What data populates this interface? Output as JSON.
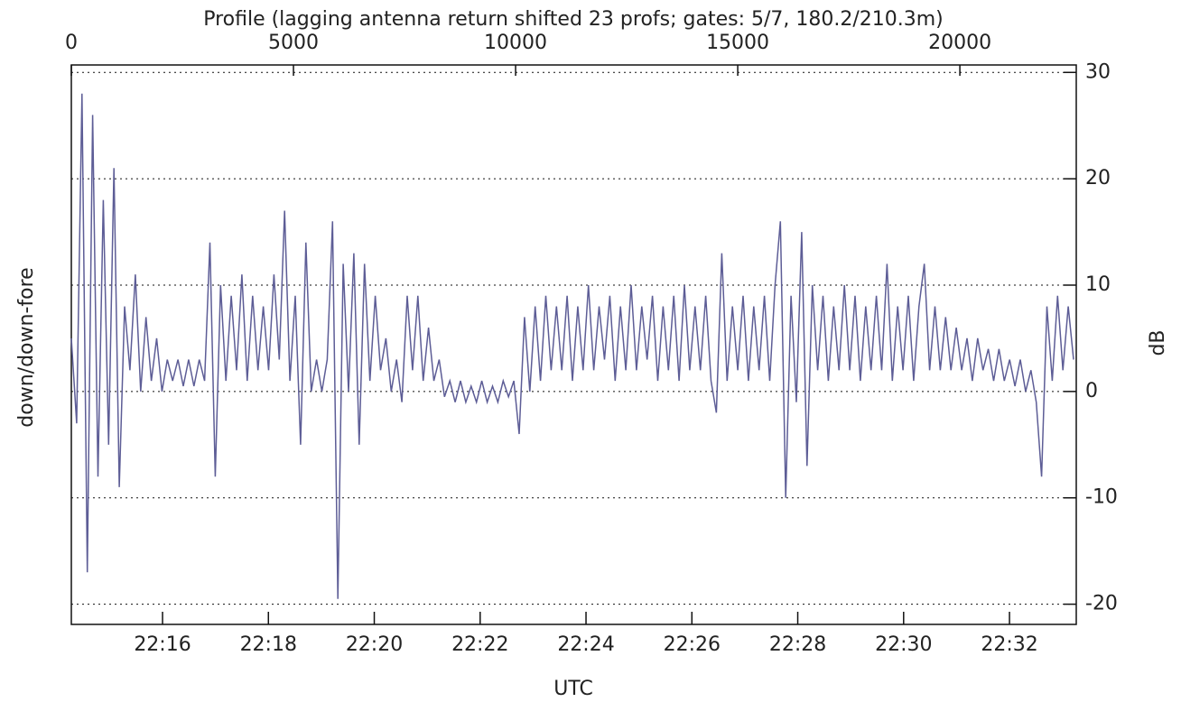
{
  "chart_data": {
    "type": "line",
    "title": "Profile (lagging antenna return shifted 23 profs; gates: 5/7, 180.2/210.3m)",
    "x_label": "UTC",
    "y_label": "down/down-fore",
    "y2_label": "dB",
    "xlim": [
      0,
      22620
    ],
    "xticks": [
      0,
      5000,
      10000,
      15000,
      20000
    ],
    "x2ticks": [
      {
        "value": 2053,
        "label": "22:16"
      },
      {
        "value": 4436,
        "label": "22:18"
      },
      {
        "value": 6819,
        "label": "22:20"
      },
      {
        "value": 9202,
        "label": "22:22"
      },
      {
        "value": 11585,
        "label": "22:24"
      },
      {
        "value": 13968,
        "label": "22:26"
      },
      {
        "value": 16351,
        "label": "22:28"
      },
      {
        "value": 18734,
        "label": "22:30"
      },
      {
        "value": 21117,
        "label": "22:32"
      }
    ],
    "ylim": [
      -21.9,
      30.7
    ],
    "yticks": [
      -20,
      -10,
      0,
      10,
      20,
      30
    ],
    "grid": true,
    "x": [
      0,
      120,
      240,
      360,
      480,
      600,
      720,
      840,
      960,
      1080,
      1200,
      1320,
      1440,
      1560,
      1680,
      1800,
      1920,
      2040,
      2160,
      2280,
      2400,
      2520,
      2640,
      2760,
      2880,
      3000,
      3120,
      3240,
      3360,
      3480,
      3600,
      3720,
      3840,
      3960,
      4080,
      4200,
      4320,
      4440,
      4560,
      4680,
      4800,
      4920,
      5040,
      5160,
      5280,
      5400,
      5520,
      5640,
      5760,
      5880,
      6000,
      6120,
      6240,
      6360,
      6480,
      6600,
      6720,
      6840,
      6960,
      7080,
      7200,
      7320,
      7440,
      7560,
      7680,
      7800,
      7920,
      8040,
      8160,
      8280,
      8400,
      8520,
      8640,
      8760,
      8880,
      9000,
      9120,
      9240,
      9360,
      9480,
      9600,
      9720,
      9840,
      9960,
      10080,
      10200,
      10320,
      10440,
      10560,
      10680,
      10800,
      10920,
      11040,
      11160,
      11280,
      11400,
      11520,
      11640,
      11760,
      11880,
      12000,
      12120,
      12240,
      12360,
      12480,
      12600,
      12720,
      12840,
      12960,
      13080,
      13200,
      13320,
      13440,
      13560,
      13680,
      13800,
      13920,
      14040,
      14160,
      14280,
      14400,
      14520,
      14640,
      14760,
      14880,
      15000,
      15120,
      15240,
      15360,
      15480,
      15600,
      15720,
      15840,
      15960,
      16080,
      16200,
      16320,
      16440,
      16560,
      16680,
      16800,
      16920,
      17040,
      17160,
      17280,
      17400,
      17520,
      17640,
      17760,
      17880,
      18000,
      18120,
      18240,
      18360,
      18480,
      18600,
      18720,
      18840,
      18960,
      19080,
      19200,
      19320,
      19440,
      19560,
      19680,
      19800,
      19920,
      20040,
      20160,
      20280,
      20400,
      20520,
      20640,
      20760,
      20880,
      21000,
      21120,
      21240,
      21360,
      21480,
      21600,
      21720,
      21840,
      21960,
      22080,
      22200,
      22320,
      22440,
      22560
    ],
    "series": [
      {
        "color": "#5d5d96",
        "values": [
          5,
          -3,
          28,
          -17,
          26,
          -8,
          18,
          -5,
          21,
          -9,
          8,
          2,
          11,
          0,
          7,
          1,
          5,
          0,
          3,
          1,
          3,
          0.5,
          3,
          0.5,
          3,
          1,
          14,
          -8,
          10,
          1,
          9,
          2,
          11,
          1,
          9,
          2,
          8,
          2,
          11,
          3,
          17,
          1,
          9,
          -5,
          14,
          0,
          3,
          0,
          3,
          16,
          -19.5,
          12,
          0,
          13,
          -5,
          12,
          1,
          9,
          2,
          5,
          0,
          3,
          -1,
          9,
          2,
          9,
          1,
          6,
          1,
          3,
          -0.5,
          1,
          -1,
          1,
          -1,
          0.5,
          -1,
          1,
          -1,
          0.5,
          -1,
          1,
          -0.5,
          1,
          -4,
          7,
          0,
          8,
          1,
          9,
          2,
          8,
          2,
          9,
          1,
          8,
          2,
          10,
          2,
          8,
          3,
          9,
          1,
          8,
          2,
          10,
          2,
          8,
          3,
          9,
          1,
          8,
          2,
          9,
          1,
          10,
          2,
          8,
          2,
          9,
          1,
          -2,
          13,
          1,
          8,
          2,
          9,
          1,
          8,
          2,
          9,
          1,
          10,
          16,
          -10,
          9,
          -1,
          15,
          -7,
          10,
          2,
          9,
          1,
          8,
          2,
          10,
          2,
          9,
          1,
          8,
          2,
          9,
          2,
          12,
          1,
          8,
          2,
          9,
          1,
          8,
          12,
          2,
          8,
          2,
          7,
          2,
          6,
          2,
          5,
          1,
          5,
          2,
          4,
          1,
          4,
          1,
          3,
          0.5,
          3,
          0,
          2,
          -1,
          -8,
          8,
          1,
          9,
          2,
          8,
          3
        ]
      }
    ]
  }
}
